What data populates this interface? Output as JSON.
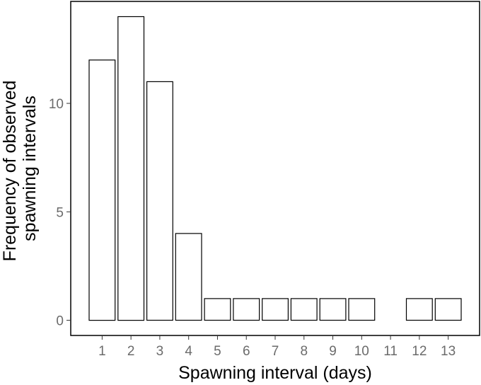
{
  "chart_data": {
    "type": "bar",
    "categories": [
      "1",
      "2",
      "3",
      "4",
      "5",
      "6",
      "7",
      "8",
      "9",
      "10",
      "11",
      "12",
      "13"
    ],
    "values": [
      12,
      14,
      11,
      4,
      1,
      1,
      1,
      1,
      1,
      1,
      0,
      1,
      1
    ],
    "xlabel": "Spawning interval (days)",
    "ylabel_lines": [
      "Frequency of observed",
      "spawning intervals"
    ],
    "yticks": [
      0,
      5,
      10
    ],
    "ylim": [
      -0.7,
      14.7
    ],
    "grid": false,
    "legend": "none",
    "colors": {
      "bar_fill": "#ffffff",
      "bar_stroke": "#000000",
      "panel_border": "#000000",
      "tick_text": "#6b6b6b"
    }
  }
}
